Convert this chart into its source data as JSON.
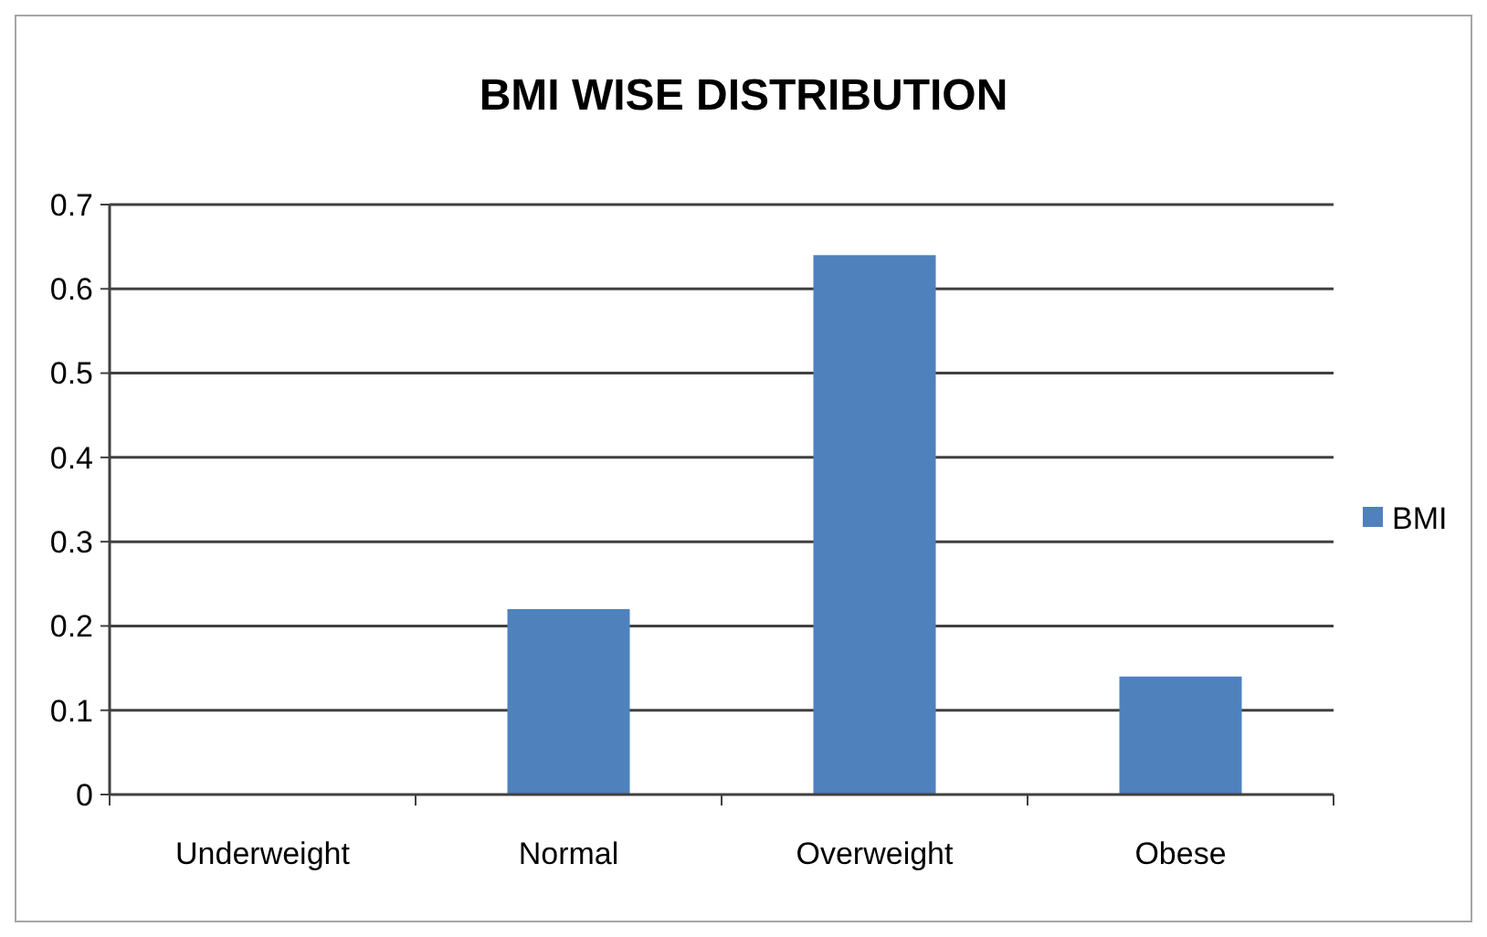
{
  "chart_data": {
    "type": "bar",
    "title": "BMI WISE DISTRIBUTION",
    "categories": [
      "Underweight",
      "Normal",
      "Overweight",
      "Obese"
    ],
    "series": [
      {
        "name": "BMI",
        "color": "#4f81bd",
        "values": [
          0,
          0.22,
          0.64,
          0.14
        ]
      }
    ],
    "ylim": [
      0,
      0.7
    ],
    "yticks": [
      0,
      0.1,
      0.2,
      0.3,
      0.4,
      0.5,
      0.6,
      0.7
    ],
    "grid": "y",
    "legend": "right"
  }
}
